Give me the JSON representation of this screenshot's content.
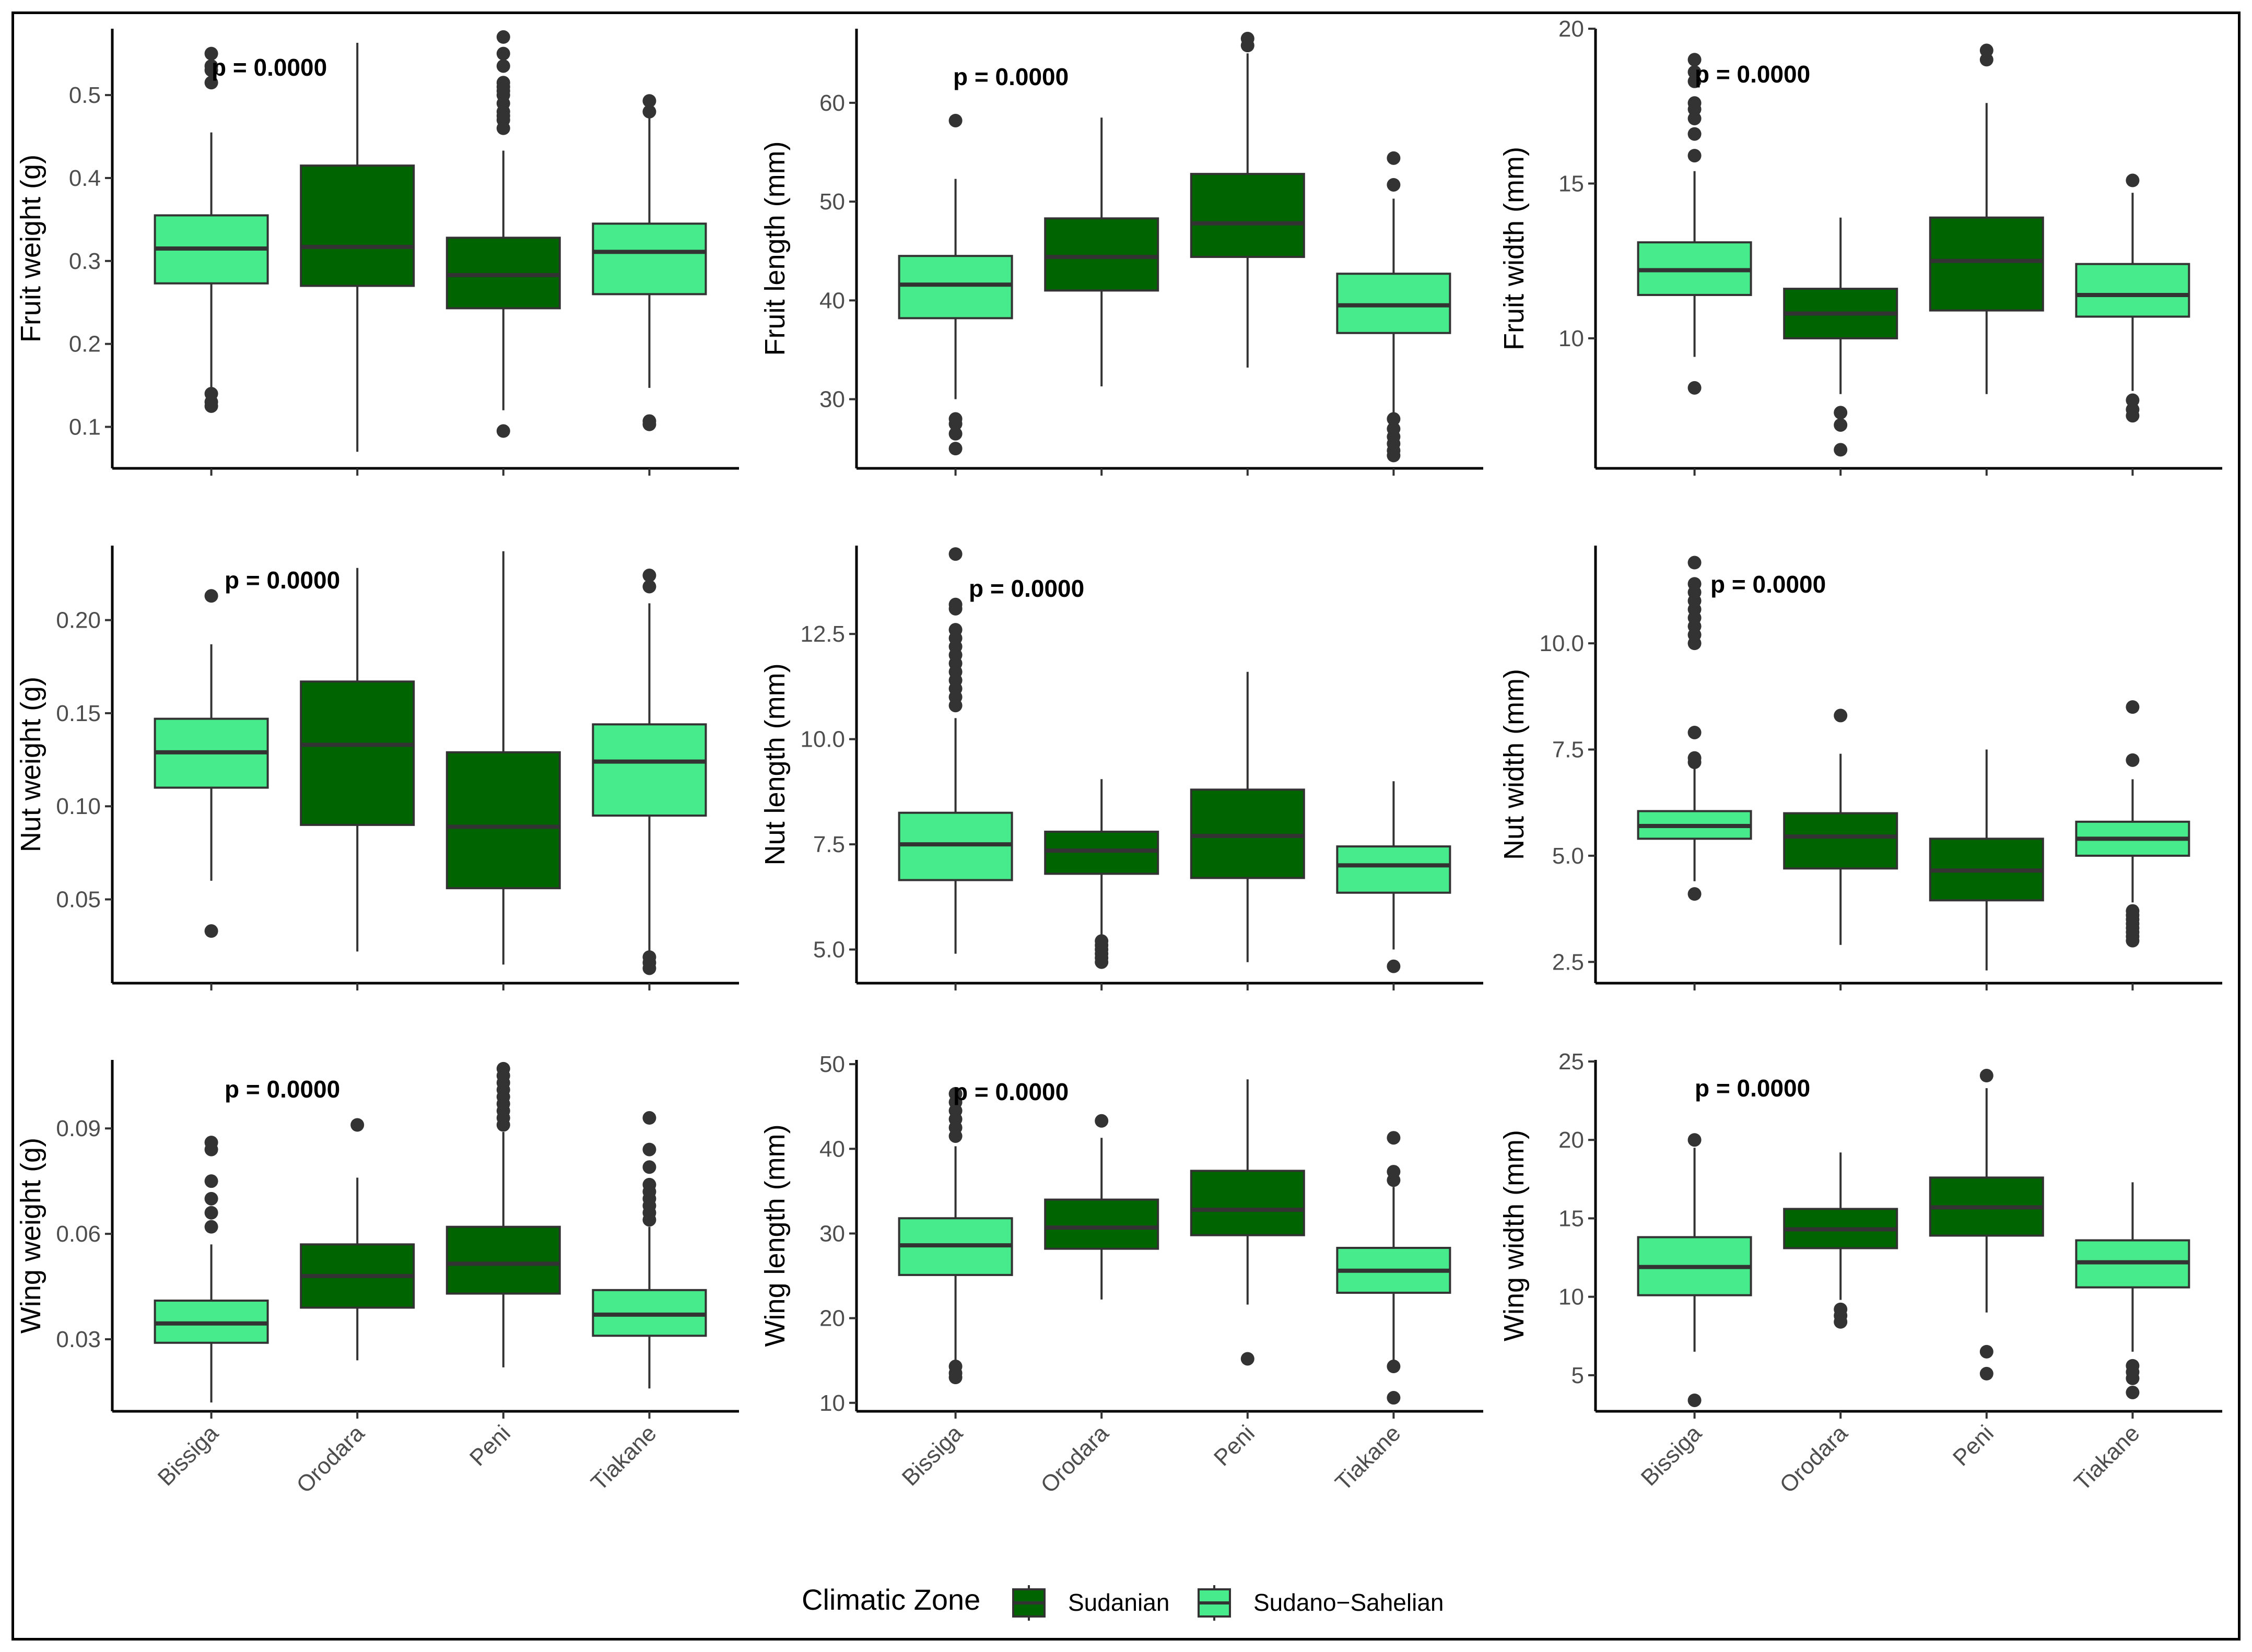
{
  "legend": {
    "title": "Climatic Zone",
    "items": [
      {
        "label": "Sudanian",
        "color": "#006400"
      },
      {
        "label": "Sudano−Sahelian",
        "color": "#47EB8B"
      }
    ]
  },
  "colors": {
    "Sudanian": "#006400",
    "Sudano-Sahelian": "#47EB8B",
    "outline": "#333333"
  },
  "chart_data": [
    {
      "type": "boxplot",
      "ylabel": "Fruit weight (g)",
      "ylim": [
        0.05,
        0.58
      ],
      "yticks": [
        0.1,
        0.2,
        0.3,
        0.4,
        0.5
      ],
      "ytick_labels": [
        "0.1",
        "0.2",
        "0.3",
        "0.4",
        "0.5"
      ],
      "annotation": "p = 0.0000",
      "categories": [
        "Bissiga",
        "Orodara",
        "Peni",
        "Tiakane"
      ],
      "zones": [
        "Sudano-Sahelian",
        "Sudanian",
        "Sudanian",
        "Sudano-Sahelian"
      ],
      "boxes": [
        {
          "whisker_low": 0.148,
          "q1": 0.273,
          "median": 0.315,
          "q3": 0.355,
          "whisker_high": 0.455,
          "outliers": [
            0.125,
            0.13,
            0.14,
            0.515,
            0.53,
            0.535,
            0.55
          ]
        },
        {
          "whisker_low": 0.07,
          "q1": 0.27,
          "median": 0.317,
          "q3": 0.415,
          "whisker_high": 0.563,
          "outliers": []
        },
        {
          "whisker_low": 0.12,
          "q1": 0.243,
          "median": 0.283,
          "q3": 0.328,
          "whisker_high": 0.433,
          "outliers": [
            0.095,
            0.46,
            0.47,
            0.475,
            0.48,
            0.49,
            0.5,
            0.505,
            0.51,
            0.515,
            0.535,
            0.55,
            0.57
          ]
        },
        {
          "whisker_low": 0.147,
          "q1": 0.26,
          "median": 0.311,
          "q3": 0.345,
          "whisker_high": 0.475,
          "outliers": [
            0.103,
            0.107,
            0.48,
            0.493
          ]
        }
      ]
    },
    {
      "type": "boxplot",
      "ylabel": "Fruit length (mm)",
      "ylim": [
        23,
        67.5
      ],
      "yticks": [
        30,
        40,
        50,
        60
      ],
      "ytick_labels": [
        "30",
        "40",
        "50",
        "60"
      ],
      "annotation": "p = 0.0000",
      "categories": [
        "Bissiga",
        "Orodara",
        "Peni",
        "Tiakane"
      ],
      "zones": [
        "Sudano-Sahelian",
        "Sudanian",
        "Sudanian",
        "Sudano-Sahelian"
      ],
      "boxes": [
        {
          "whisker_low": 30,
          "q1": 38.2,
          "median": 41.6,
          "q3": 44.5,
          "whisker_high": 52.3,
          "outliers": [
            25,
            26.5,
            27.5,
            28,
            58.2
          ]
        },
        {
          "whisker_low": 31.3,
          "q1": 41,
          "median": 44.4,
          "q3": 48.3,
          "whisker_high": 58.5,
          "outliers": []
        },
        {
          "whisker_low": 33.2,
          "q1": 44.4,
          "median": 47.8,
          "q3": 52.8,
          "whisker_high": 65,
          "outliers": [
            65.8,
            66.5
          ]
        },
        {
          "whisker_low": 28.4,
          "q1": 36.7,
          "median": 39.5,
          "q3": 42.7,
          "whisker_high": 50.3,
          "outliers": [
            24.3,
            24.8,
            25.5,
            26.2,
            27,
            28,
            51.7,
            54.4
          ]
        }
      ]
    },
    {
      "type": "boxplot",
      "ylabel": "Fruit width (mm)",
      "ylim": [
        5.8,
        20
      ],
      "yticks": [
        10,
        15,
        20
      ],
      "ytick_labels": [
        "10",
        "15",
        "20"
      ],
      "annotation": "p = 0.0000",
      "categories": [
        "Bissiga",
        "Orodara",
        "Peni",
        "Tiakane"
      ],
      "zones": [
        "Sudano-Sahelian",
        "Sudanian",
        "Sudanian",
        "Sudano-Sahelian"
      ],
      "boxes": [
        {
          "whisker_low": 9.4,
          "q1": 11.4,
          "median": 12.2,
          "q3": 13.1,
          "whisker_high": 15.4,
          "outliers": [
            8.4,
            15.9,
            16.6,
            17.1,
            17.4,
            17.6,
            18.3,
            18.6,
            19
          ]
        },
        {
          "whisker_low": 8.2,
          "q1": 10,
          "median": 10.8,
          "q3": 11.6,
          "whisker_high": 13.9,
          "outliers": [
            6.4,
            7.2,
            7.6
          ]
        },
        {
          "whisker_low": 8.2,
          "q1": 10.9,
          "median": 12.5,
          "q3": 13.9,
          "whisker_high": 17.6,
          "outliers": [
            19,
            19.3
          ]
        },
        {
          "whisker_low": 8.3,
          "q1": 10.7,
          "median": 11.4,
          "q3": 12.4,
          "whisker_high": 14.7,
          "outliers": [
            7.5,
            7.7,
            8,
            15.1
          ]
        }
      ]
    },
    {
      "type": "boxplot",
      "ylabel": "Nut weight (g)",
      "ylim": [
        0.005,
        0.24
      ],
      "yticks": [
        0.05,
        0.1,
        0.15,
        0.2
      ],
      "ytick_labels": [
        "0.05",
        "0.10",
        "0.15",
        "0.20"
      ],
      "annotation": "p = 0.0000",
      "categories": [
        "Bissiga",
        "Orodara",
        "Peni",
        "Tiakane"
      ],
      "zones": [
        "Sudano-Sahelian",
        "Sudanian",
        "Sudanian",
        "Sudano-Sahelian"
      ],
      "boxes": [
        {
          "whisker_low": 0.06,
          "q1": 0.11,
          "median": 0.129,
          "q3": 0.147,
          "whisker_high": 0.187,
          "outliers": [
            0.033,
            0.213
          ]
        },
        {
          "whisker_low": 0.022,
          "q1": 0.09,
          "median": 0.133,
          "q3": 0.167,
          "whisker_high": 0.228,
          "outliers": []
        },
        {
          "whisker_low": 0.015,
          "q1": 0.056,
          "median": 0.089,
          "q3": 0.129,
          "whisker_high": 0.237,
          "outliers": []
        },
        {
          "whisker_low": 0.021,
          "q1": 0.095,
          "median": 0.124,
          "q3": 0.144,
          "whisker_high": 0.209,
          "outliers": [
            0.013,
            0.016,
            0.019,
            0.218,
            0.224
          ]
        }
      ]
    },
    {
      "type": "boxplot",
      "ylabel": "Nut length (mm)",
      "ylim": [
        4.2,
        14.6
      ],
      "yticks": [
        5,
        7.5,
        10,
        12.5
      ],
      "ytick_labels": [
        "5.0",
        "7.5",
        "10.0",
        "12.5"
      ],
      "annotation": "p = 0.0000",
      "categories": [
        "Bissiga",
        "Orodara",
        "Peni",
        "Tiakane"
      ],
      "zones": [
        "Sudano-Sahelian",
        "Sudanian",
        "Sudanian",
        "Sudano-Sahelian"
      ],
      "boxes": [
        {
          "whisker_low": 4.9,
          "q1": 6.65,
          "median": 7.5,
          "q3": 8.25,
          "whisker_high": 10.5,
          "outliers": [
            10.8,
            11,
            11.2,
            11.4,
            11.6,
            11.8,
            12,
            12.2,
            12.4,
            12.6,
            13.1,
            13.2,
            14.4
          ]
        },
        {
          "whisker_low": 5.3,
          "q1": 6.8,
          "median": 7.35,
          "q3": 7.8,
          "whisker_high": 9.05,
          "outliers": [
            4.7,
            4.8,
            4.9,
            5,
            5.1,
            5.2
          ]
        },
        {
          "whisker_low": 4.7,
          "q1": 6.7,
          "median": 7.7,
          "q3": 8.8,
          "whisker_high": 11.6,
          "outliers": []
        },
        {
          "whisker_low": 5,
          "q1": 6.35,
          "median": 7,
          "q3": 7.45,
          "whisker_high": 9,
          "outliers": [
            4.6
          ]
        }
      ]
    },
    {
      "type": "boxplot",
      "ylabel": "Nut width (mm)",
      "ylim": [
        2,
        12.3
      ],
      "yticks": [
        2.5,
        5,
        7.5,
        10
      ],
      "ytick_labels": [
        "2.5",
        "5.0",
        "7.5",
        "10.0"
      ],
      "annotation": "p = 0.0000",
      "categories": [
        "Bissiga",
        "Orodara",
        "Peni",
        "Tiakane"
      ],
      "zones": [
        "Sudano-Sahelian",
        "Sudanian",
        "Sudanian",
        "Sudano-Sahelian"
      ],
      "boxes": [
        {
          "whisker_low": 4.4,
          "q1": 5.4,
          "median": 5.7,
          "q3": 6.05,
          "whisker_high": 7.1,
          "outliers": [
            4.1,
            7.2,
            7.3,
            7.9,
            10,
            10.2,
            10.4,
            10.6,
            10.8,
            11,
            11.2,
            11.4,
            11.9
          ]
        },
        {
          "whisker_low": 2.9,
          "q1": 4.7,
          "median": 5.45,
          "q3": 6,
          "whisker_high": 7.4,
          "outliers": [
            8.3
          ]
        },
        {
          "whisker_low": 2.3,
          "q1": 3.95,
          "median": 4.65,
          "q3": 5.4,
          "whisker_high": 7.5,
          "outliers": []
        },
        {
          "whisker_low": 3.9,
          "q1": 5,
          "median": 5.4,
          "q3": 5.8,
          "whisker_high": 6.8,
          "outliers": [
            3,
            3.1,
            3.2,
            3.3,
            3.4,
            3.5,
            3.6,
            3.7,
            7.25,
            8.5
          ]
        }
      ]
    },
    {
      "type": "boxplot",
      "ylabel": "Wing weight (g)",
      "ylim": [
        0.0095,
        0.1095
      ],
      "yticks": [
        0.03,
        0.06,
        0.09
      ],
      "ytick_labels": [
        "0.03",
        "0.06",
        "0.09"
      ],
      "annotation": "p = 0.0000",
      "categories": [
        "Bissiga",
        "Orodara",
        "Peni",
        "Tiakane"
      ],
      "zones": [
        "Sudano-Sahelian",
        "Sudanian",
        "Sudanian",
        "Sudano-Sahelian"
      ],
      "boxes": [
        {
          "whisker_low": 0.012,
          "q1": 0.029,
          "median": 0.0345,
          "q3": 0.041,
          "whisker_high": 0.057,
          "outliers": [
            0.062,
            0.066,
            0.07,
            0.075,
            0.084,
            0.086
          ]
        },
        {
          "whisker_low": 0.024,
          "q1": 0.039,
          "median": 0.048,
          "q3": 0.057,
          "whisker_high": 0.076,
          "outliers": [
            0.091
          ]
        },
        {
          "whisker_low": 0.022,
          "q1": 0.043,
          "median": 0.0515,
          "q3": 0.062,
          "whisker_high": 0.089,
          "outliers": [
            0.091,
            0.093,
            0.095,
            0.097,
            0.099,
            0.101,
            0.103,
            0.105,
            0.107
          ]
        },
        {
          "whisker_low": 0.016,
          "q1": 0.031,
          "median": 0.037,
          "q3": 0.044,
          "whisker_high": 0.062,
          "outliers": [
            0.064,
            0.066,
            0.068,
            0.07,
            0.072,
            0.074,
            0.079,
            0.084,
            0.093
          ]
        }
      ]
    },
    {
      "type": "boxplot",
      "ylabel": "Wing length (mm)",
      "ylim": [
        9,
        50.5
      ],
      "yticks": [
        10,
        20,
        30,
        40,
        50
      ],
      "ytick_labels": [
        "10",
        "20",
        "30",
        "40",
        "50"
      ],
      "annotation": "p = 0.0000",
      "categories": [
        "Bissiga",
        "Orodara",
        "Peni",
        "Tiakane"
      ],
      "zones": [
        "Sudano-Sahelian",
        "Sudanian",
        "Sudanian",
        "Sudano-Sahelian"
      ],
      "boxes": [
        {
          "whisker_low": 15,
          "q1": 25.1,
          "median": 28.6,
          "q3": 31.8,
          "whisker_high": 40.3,
          "outliers": [
            13,
            13.5,
            14.3,
            41.5,
            42.5,
            43.5,
            44.5,
            45.5,
            46.5
          ]
        },
        {
          "whisker_low": 22.2,
          "q1": 28.2,
          "median": 30.7,
          "q3": 34,
          "whisker_high": 41.3,
          "outliers": [
            43.3
          ]
        },
        {
          "whisker_low": 21.6,
          "q1": 29.8,
          "median": 32.8,
          "q3": 37.4,
          "whisker_high": 48.2,
          "outliers": [
            15.2
          ]
        },
        {
          "whisker_low": 15,
          "q1": 23,
          "median": 25.6,
          "q3": 28.3,
          "whisker_high": 35.5,
          "outliers": [
            10.6,
            14.3,
            36.3,
            37.3,
            41.3
          ]
        }
      ]
    },
    {
      "type": "boxplot",
      "ylabel": "Wing width (mm)",
      "ylim": [
        2.7,
        25.1
      ],
      "yticks": [
        5,
        10,
        15,
        20,
        25
      ],
      "ytick_labels": [
        "5",
        "10",
        "15",
        "20",
        "25"
      ],
      "annotation": "p = 0.0000",
      "categories": [
        "Bissiga",
        "Orodara",
        "Peni",
        "Tiakane"
      ],
      "zones": [
        "Sudano-Sahelian",
        "Sudanian",
        "Sudanian",
        "Sudano-Sahelian"
      ],
      "boxes": [
        {
          "whisker_low": 6.5,
          "q1": 10.1,
          "median": 11.9,
          "q3": 13.8,
          "whisker_high": 19.5,
          "outliers": [
            3.4,
            20
          ]
        },
        {
          "whisker_low": 9.8,
          "q1": 13.1,
          "median": 14.3,
          "q3": 15.6,
          "whisker_high": 19.2,
          "outliers": [
            8.4,
            8.8,
            9.2
          ]
        },
        {
          "whisker_low": 9,
          "q1": 13.9,
          "median": 15.7,
          "q3": 17.6,
          "whisker_high": 23.3,
          "outliers": [
            5.1,
            6.5,
            24.1
          ]
        },
        {
          "whisker_low": 6.5,
          "q1": 10.6,
          "median": 12.2,
          "q3": 13.6,
          "whisker_high": 17.3,
          "outliers": [
            3.9,
            4.8,
            5.2,
            5.6
          ]
        }
      ]
    }
  ]
}
